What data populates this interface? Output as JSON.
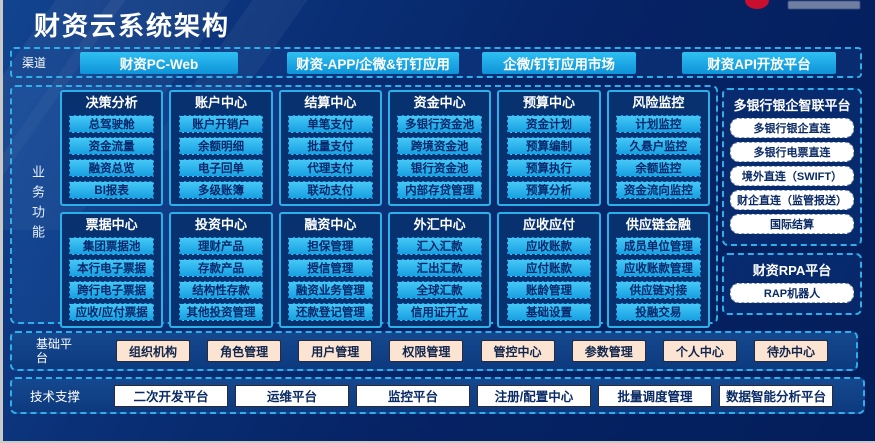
{
  "header": {
    "title": "财资云系统架构"
  },
  "channels": {
    "label": "渠道",
    "items": [
      "财资PC-Web",
      "财资-APP/企微&钉钉应用",
      "企微/钉钉应用市场",
      "财资API开放平台"
    ]
  },
  "business": {
    "label": "业务功能",
    "rows": [
      [
        {
          "title": "决策分析",
          "items": [
            "总驾驶舱",
            "资金流量",
            "融资总览",
            "BI报表"
          ]
        },
        {
          "title": "账户中心",
          "items": [
            "账户开销户",
            "余额明细",
            "电子回单",
            "多级账簿"
          ]
        },
        {
          "title": "结算中心",
          "items": [
            "单笔支付",
            "批量支付",
            "代理支付",
            "联动支付"
          ]
        },
        {
          "title": "资金中心",
          "items": [
            "多银行资金池",
            "跨境资金池",
            "银行资金池",
            "内部存贷管理"
          ]
        },
        {
          "title": "预算中心",
          "items": [
            "资金计划",
            "预算编制",
            "预算执行",
            "预算分析"
          ]
        },
        {
          "title": "风险监控",
          "items": [
            "计划监控",
            "久悬户监控",
            "余额监控",
            "资金流向监控"
          ]
        }
      ],
      [
        {
          "title": "票据中心",
          "items": [
            "集团票据池",
            "本行电子票据",
            "跨行电子票据",
            "应收/应付票据"
          ]
        },
        {
          "title": "投资中心",
          "items": [
            "理财产品",
            "存款产品",
            "结构性存款",
            "其他投资管理"
          ]
        },
        {
          "title": "融资中心",
          "items": [
            "担保管理",
            "授信管理",
            "融资业务管理",
            "还款登记管理"
          ]
        },
        {
          "title": "外汇中心",
          "items": [
            "汇入汇款",
            "汇出汇款",
            "全球汇款",
            "信用证开立"
          ]
        },
        {
          "title": "应收应付",
          "items": [
            "应收账款",
            "应付账款",
            "账龄管理",
            "基础设置"
          ]
        },
        {
          "title": "供应链金融",
          "items": [
            "成员单位管理",
            "应收账款管理",
            "供应链对接",
            "投融交易"
          ]
        }
      ]
    ]
  },
  "right": {
    "bank_panel": {
      "title": "多银行银企智联平台",
      "items": [
        "多银行银企直连",
        "多银行电票直连",
        "境外直连（SWIFT）",
        "财企直连（监管报送）",
        "国际结算"
      ]
    },
    "rpa_panel": {
      "title": "财资RPA平台",
      "items": [
        "RAP机器人"
      ]
    }
  },
  "base_platform": {
    "label": "基础平台",
    "items": [
      "组织机构",
      "角色管理",
      "用户管理",
      "权限管理",
      "管控中心",
      "参数管理",
      "个人中心",
      "待办中心"
    ]
  },
  "tech_support": {
    "label": "技术支撑",
    "items": [
      "二次开发平台",
      "运维平台",
      "监控平台",
      "注册/配置中心",
      "批量调度管理",
      "数据智能分析平台"
    ]
  },
  "colors": {
    "accent_cyan": "#2bb0ea",
    "button_cyan": "#17a0e2",
    "peach": "#fbe4d2",
    "navy": "#062365",
    "logo_red": "#c8102e"
  }
}
